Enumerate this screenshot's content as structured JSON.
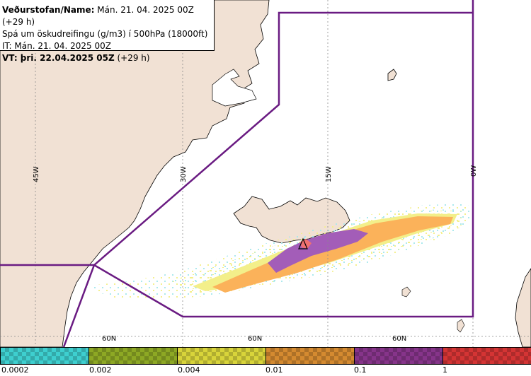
{
  "header": {
    "line1_bold": "Veðurstofan/Name:",
    "line1_rest": " Mán. 21. 04. 2025 00Z (+29 h)",
    "line2": "Spá um öskudreifingu (g/m3) í 500hPa (18000ft)",
    "line3": "IT: Mán. 21. 04. 2025 00Z",
    "line4_bold": "VT: þri. 22.04.2025 05Z",
    "line4_rest": " (+29 h)"
  },
  "map": {
    "longitude_labels": [
      "45W",
      "30W",
      "15W",
      "0W"
    ],
    "latitude_labels": [
      "60N",
      "60N",
      "60N"
    ],
    "colors": {
      "land": "#f1e1d4",
      "sea": "#ffffff",
      "boundary": "#6a1b82",
      "grid": "#8a8a8a"
    }
  },
  "legend": {
    "labels": [
      "0.0002",
      "0.002",
      "0.004",
      "0.01",
      "0.1",
      "1"
    ],
    "colors": [
      "#3ecfcf",
      "#8da824",
      "#d8d43a",
      "#d48a30",
      "#86348a",
      "#d43434"
    ]
  },
  "ash_colors": {
    "trace": "#a8e8ec",
    "light": "#f3ef8a",
    "medium": "#fbb25a",
    "heavy": "#a35db8",
    "core": "#f07070"
  }
}
